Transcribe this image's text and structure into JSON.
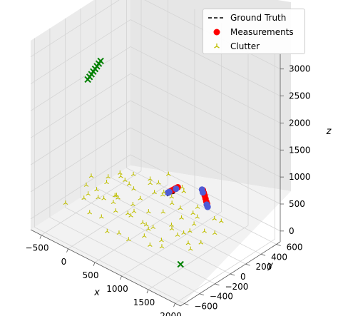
{
  "chart_data": {
    "type": "scatter",
    "projection": "3d",
    "title": "",
    "xlabel": "x",
    "ylabel": "y",
    "zlabel": "z",
    "xlim": [
      -700,
      2100
    ],
    "ylim": [
      -650,
      650
    ],
    "zlim": [
      -200,
      3300
    ],
    "x_ticks": [
      "−500",
      "0",
      "500",
      "1000",
      "1500",
      "2000"
    ],
    "y_ticks": [
      "−600",
      "−400",
      "−200",
      "0",
      "200",
      "400",
      "600"
    ],
    "z_ticks": [
      "0",
      "500",
      "1000",
      "1500",
      "2000",
      "2500",
      "3000"
    ],
    "grid": true,
    "legend_position": "top-right",
    "series": [
      {
        "name": "Ground Truth",
        "kind": "line",
        "style": "dashed",
        "color": "#000000",
        "points": [
          [
            700,
            150,
            400
          ],
          [
            820,
            170,
            500
          ]
        ]
      },
      {
        "name": "Measurements",
        "kind": "scatter",
        "marker": "circle",
        "color": "#ff0000",
        "points": [
          [
            640,
            220,
            380
          ],
          [
            660,
            225,
            400
          ],
          [
            680,
            230,
            420
          ],
          [
            700,
            236,
            440
          ],
          [
            720,
            240,
            460
          ],
          [
            740,
            246,
            480
          ],
          [
            760,
            250,
            500
          ],
          [
            1200,
            270,
            650
          ],
          [
            1220,
            268,
            610
          ],
          [
            1240,
            266,
            570
          ],
          [
            1260,
            262,
            530
          ],
          [
            1280,
            258,
            490
          ],
          [
            1300,
            255,
            460
          ]
        ]
      },
      {
        "name": "",
        "kind": "scatter",
        "marker": "circle",
        "color": "#4f5bd5",
        "points": [
          [
            630,
            210,
            370
          ],
          [
            650,
            215,
            390
          ],
          [
            740,
            240,
            470
          ],
          [
            1190,
            265,
            660
          ],
          [
            1210,
            262,
            620
          ],
          [
            1300,
            250,
            450
          ],
          [
            1320,
            248,
            420
          ]
        ]
      },
      {
        "name": "",
        "kind": "scatter",
        "marker": "x",
        "color": "#008000",
        "points": [
          [
            -350,
            -150,
            2300
          ],
          [
            -330,
            -140,
            2350
          ],
          [
            -310,
            -130,
            2400
          ],
          [
            -290,
            -120,
            2450
          ],
          [
            -270,
            -110,
            2500
          ],
          [
            -250,
            -100,
            2550
          ],
          [
            -230,
            -90,
            2600
          ],
          [
            -210,
            -80,
            2650
          ],
          [
            1600,
            -300,
            0
          ]
        ]
      },
      {
        "name": "Clutter",
        "kind": "scatter",
        "marker": "tri_up",
        "color": "#bfbf00",
        "points": [
          [
            -400,
            0,
            100
          ],
          [
            -300,
            -50,
            50
          ],
          [
            -200,
            100,
            0
          ],
          [
            -100,
            50,
            100
          ],
          [
            0,
            0,
            150
          ],
          [
            100,
            -100,
            50
          ],
          [
            200,
            150,
            100
          ],
          [
            300,
            0,
            50
          ],
          [
            400,
            -150,
            200
          ],
          [
            500,
            50,
            100
          ],
          [
            600,
            -50,
            0
          ],
          [
            700,
            100,
            150
          ],
          [
            800,
            -100,
            100
          ],
          [
            900,
            200,
            50
          ],
          [
            1000,
            0,
            150
          ],
          [
            1100,
            -200,
            100
          ],
          [
            1200,
            100,
            50
          ],
          [
            1300,
            -50,
            200
          ],
          [
            1400,
            150,
            100
          ],
          [
            1500,
            -100,
            50
          ],
          [
            -500,
            200,
            0
          ],
          [
            -350,
            -200,
            150
          ],
          [
            -150,
            250,
            100
          ],
          [
            50,
            -250,
            50
          ],
          [
            250,
            300,
            100
          ],
          [
            450,
            -300,
            0
          ],
          [
            650,
            250,
            150
          ],
          [
            850,
            -250,
            100
          ],
          [
            1050,
            300,
            50
          ],
          [
            1250,
            -300,
            150
          ],
          [
            1450,
            250,
            0
          ],
          [
            -450,
            -100,
            250
          ],
          [
            -250,
            200,
            300
          ],
          [
            -50,
            -150,
            250
          ],
          [
            150,
            100,
            300
          ],
          [
            350,
            -50,
            250
          ],
          [
            550,
            200,
            300
          ],
          [
            750,
            -200,
            250
          ],
          [
            950,
            150,
            300
          ],
          [
            1150,
            -100,
            250
          ],
          [
            1350,
            50,
            300
          ],
          [
            -300,
            300,
            50
          ],
          [
            -100,
            -300,
            100
          ],
          [
            100,
            350,
            150
          ],
          [
            300,
            -350,
            0
          ],
          [
            500,
            350,
            100
          ],
          [
            700,
            -350,
            50
          ],
          [
            900,
            350,
            0
          ],
          [
            1100,
            -350,
            150
          ],
          [
            1300,
            350,
            100
          ],
          [
            -500,
            0,
            300
          ],
          [
            -400,
            150,
            200
          ],
          [
            -200,
            -250,
            350
          ],
          [
            0,
            200,
            400
          ],
          [
            200,
            -200,
            350
          ],
          [
            400,
            250,
            400
          ],
          [
            600,
            -250,
            350
          ],
          [
            800,
            300,
            400
          ],
          [
            1000,
            -300,
            350
          ],
          [
            1200,
            200,
            400
          ],
          [
            1400,
            -200,
            350
          ],
          [
            600,
            0,
            800
          ],
          [
            800,
            100,
            900
          ],
          [
            1000,
            -100,
            850
          ],
          [
            1200,
            0,
            950
          ],
          [
            -550,
            -300,
            50
          ],
          [
            -450,
            350,
            0
          ],
          [
            1550,
            0,
            100
          ],
          [
            1500,
            300,
            200
          ],
          [
            1600,
            -200,
            300
          ]
        ]
      }
    ]
  }
}
